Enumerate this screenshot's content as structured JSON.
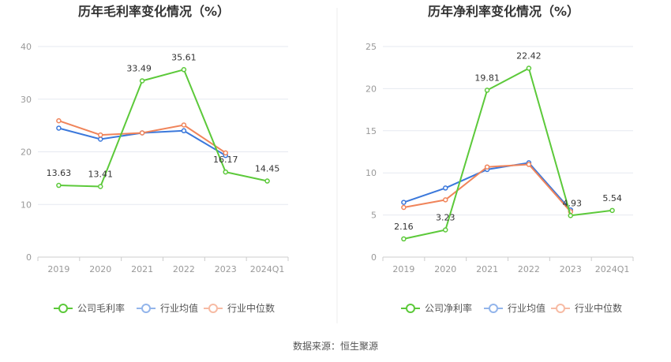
{
  "source": "数据来源：恒生聚源",
  "colors": {
    "company": "#5cc93a",
    "industry_avg": "#3b78db",
    "industry_median": "#f0845a",
    "grid": "#e6e9f0",
    "axis": "#cccccc"
  },
  "chart_data": [
    {
      "type": "line",
      "title": "历年毛利率变化情况（%）",
      "categories": [
        "2019",
        "2020",
        "2021",
        "2022",
        "2023",
        "2024Q1"
      ],
      "ylim": [
        0,
        40
      ],
      "yticks": [
        0,
        10,
        20,
        30,
        40
      ],
      "grid": true,
      "legend": "bottom",
      "series": [
        {
          "name": "公司毛利率",
          "key": "company",
          "values": [
            13.63,
            13.41,
            33.49,
            35.61,
            16.17,
            14.45
          ],
          "labels": [
            "13.63",
            "13.41",
            "33.49",
            "35.61",
            "16.17",
            "14.45"
          ]
        },
        {
          "name": "行业均值",
          "key": "industry_avg",
          "values": [
            24.5,
            22.4,
            23.6,
            24.0,
            19.3,
            null
          ]
        },
        {
          "name": "行业中位数",
          "key": "industry_median",
          "values": [
            25.9,
            23.2,
            23.6,
            25.1,
            19.8,
            null
          ]
        }
      ]
    },
    {
      "type": "line",
      "title": "历年净利率变化情况（%）",
      "categories": [
        "2019",
        "2020",
        "2021",
        "2022",
        "2023",
        "2024Q1"
      ],
      "ylim": [
        0,
        25
      ],
      "yticks": [
        0,
        5,
        10,
        15,
        20,
        25
      ],
      "grid": true,
      "legend": "bottom",
      "series": [
        {
          "name": "公司净利率",
          "key": "company",
          "values": [
            2.16,
            3.23,
            19.81,
            22.42,
            4.93,
            5.54
          ],
          "labels": [
            "2.16",
            "3.23",
            "19.81",
            "22.42",
            "4.93",
            "5.54"
          ]
        },
        {
          "name": "行业均值",
          "key": "industry_avg",
          "values": [
            6.5,
            8.2,
            10.4,
            11.2,
            5.6,
            null
          ]
        },
        {
          "name": "行业中位数",
          "key": "industry_median",
          "values": [
            5.9,
            6.8,
            10.7,
            11.0,
            5.4,
            null
          ]
        }
      ]
    }
  ]
}
